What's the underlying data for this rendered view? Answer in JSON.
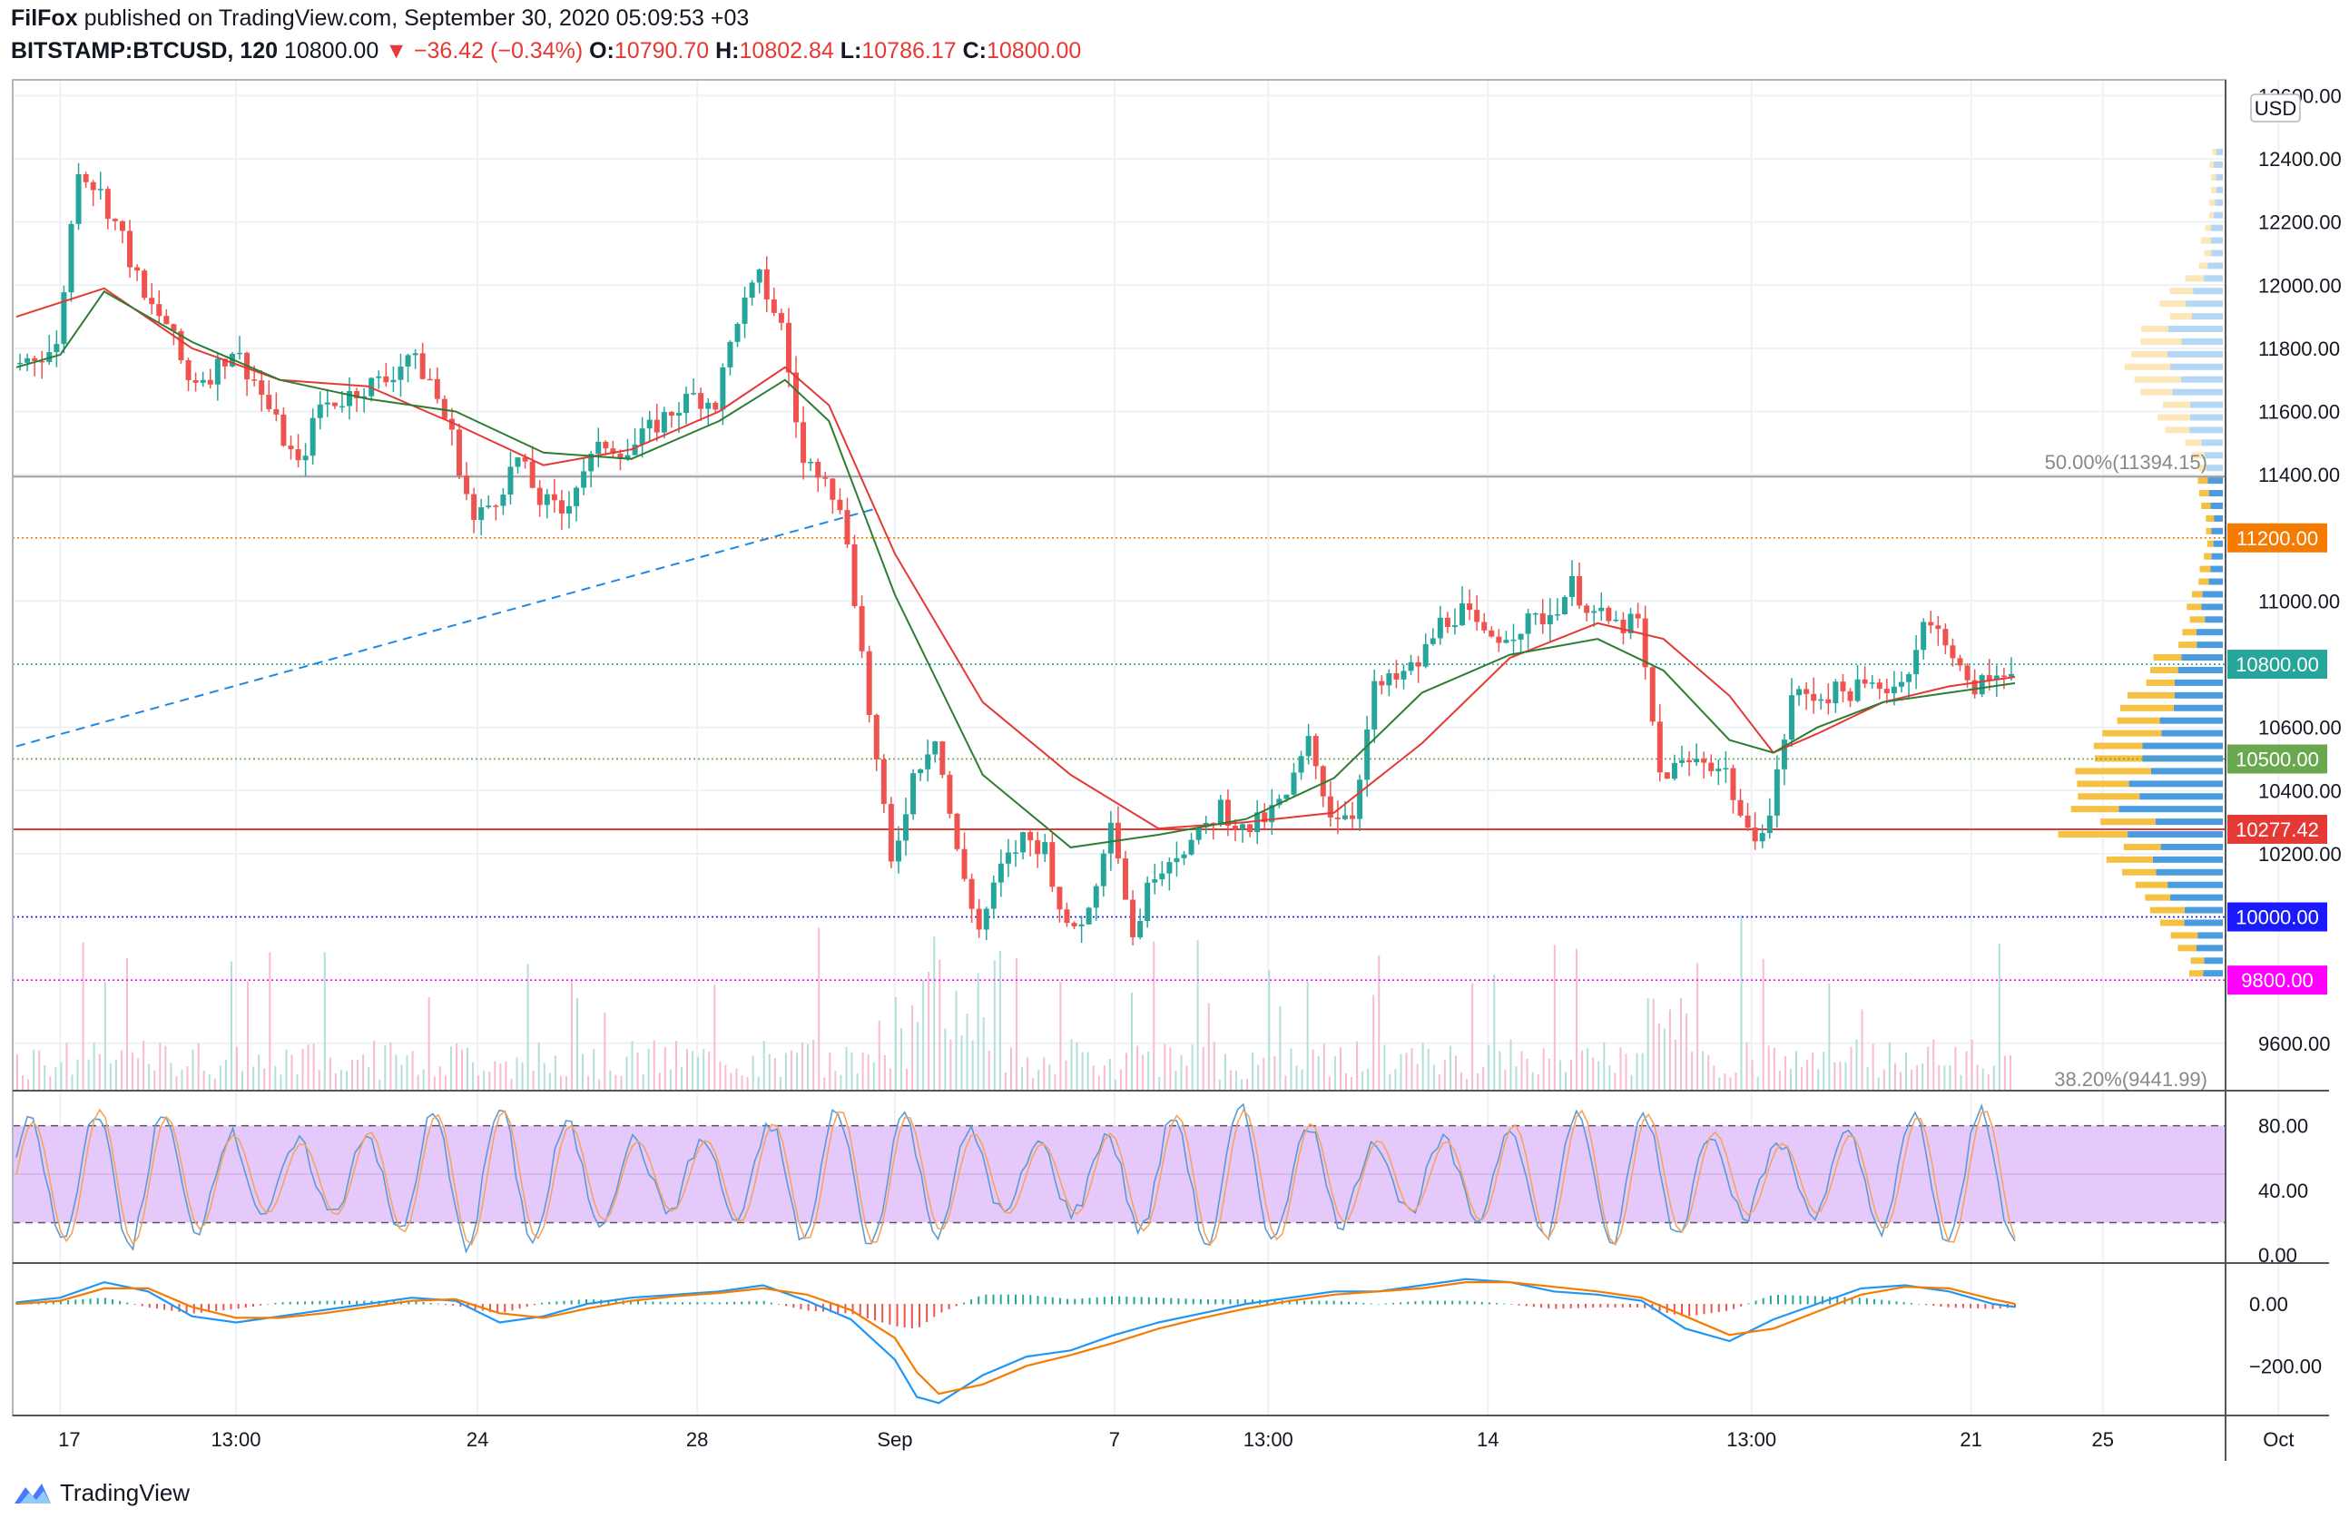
{
  "header": {
    "author": "FilFox",
    "published_text": "published on TradingView.com, September 30, 2020 05:09:53 +03",
    "symbol": "BITSTAMP:BTCUSD, 120",
    "last": "10800.00",
    "change": "−36.42 (−0.34%)",
    "o_label": "O:",
    "o_val": "10790.70",
    "h_label": "H:",
    "h_val": "10802.84",
    "l_label": "L:",
    "l_val": "10786.17",
    "c_label": "C:",
    "c_val": "10800.00"
  },
  "footer": {
    "brand": "TradingView"
  },
  "colors": {
    "up": "#26a69a",
    "down": "#ef5350",
    "ma_red": "#e53935",
    "ma_green": "#2e7d32",
    "orange": "#f57c00",
    "green_badge": "#6aa84f",
    "red_badge": "#e53935",
    "blue_badge": "#1a1aff",
    "magenta_badge": "#ff00ff",
    "stoch_band": "#e6c9fb",
    "macd_blue": "#2196f3",
    "macd_orange": "#f57c00"
  },
  "chart_data": [
    {
      "type": "candlestick",
      "title": "BITSTAMP:BTCUSD, 120",
      "unit": "USD",
      "ylim": [
        9450,
        12650
      ],
      "y_ticks": [
        "12600.00",
        "12400.00",
        "12200.00",
        "12000.00",
        "11800.00",
        "11600.00",
        "11400.00",
        "11000.00",
        "10600.00",
        "10400.00",
        "10200.00",
        "9600.00"
      ],
      "x_ticks": [
        "17",
        "13:00",
        "24",
        "28",
        "Sep",
        "7",
        "13:00",
        "14",
        "13:00",
        "21",
        "25",
        "Oct"
      ],
      "close_path": [
        [
          0,
          11750
        ],
        [
          2,
          11800
        ],
        [
          3,
          12380
        ],
        [
          4,
          12290
        ],
        [
          5,
          12150
        ],
        [
          6,
          11950
        ],
        [
          7,
          11880
        ],
        [
          8,
          11700
        ],
        [
          9,
          11720
        ],
        [
          10,
          11800
        ],
        [
          11,
          11700
        ],
        [
          12,
          11560
        ],
        [
          13,
          11420
        ],
        [
          14,
          11620
        ],
        [
          15,
          11640
        ],
        [
          16,
          11680
        ],
        [
          17,
          11700
        ],
        [
          18,
          11780
        ],
        [
          19,
          11700
        ],
        [
          20,
          11520
        ],
        [
          21,
          11250
        ],
        [
          22,
          11330
        ],
        [
          23,
          11450
        ],
        [
          24,
          11320
        ],
        [
          25,
          11280
        ],
        [
          26,
          11420
        ],
        [
          27,
          11500
        ],
        [
          28,
          11470
        ],
        [
          29,
          11540
        ],
        [
          30,
          11600
        ],
        [
          31,
          11650
        ],
        [
          32,
          11630
        ],
        [
          33,
          11900
        ],
        [
          34,
          12020
        ],
        [
          35,
          11870
        ],
        [
          36,
          11430
        ],
        [
          37,
          11420
        ],
        [
          38,
          11200
        ],
        [
          39,
          10650
        ],
        [
          40,
          10160
        ],
        [
          41,
          10450
        ],
        [
          42,
          10580
        ],
        [
          43,
          10200
        ],
        [
          44,
          9960
        ],
        [
          45,
          10150
        ],
        [
          46,
          10250
        ],
        [
          47,
          10220
        ],
        [
          48,
          9950
        ],
        [
          49,
          10020
        ],
        [
          50,
          10330
        ],
        [
          51,
          9940
        ],
        [
          52,
          10150
        ],
        [
          53,
          10210
        ],
        [
          54,
          10250
        ],
        [
          55,
          10350
        ],
        [
          56,
          10270
        ],
        [
          57,
          10310
        ],
        [
          58,
          10380
        ],
        [
          59,
          10550
        ],
        [
          60,
          10330
        ],
        [
          61,
          10330
        ],
        [
          62,
          10720
        ],
        [
          63,
          10750
        ],
        [
          64,
          10800
        ],
        [
          65,
          10930
        ],
        [
          66,
          10970
        ],
        [
          67,
          10880
        ],
        [
          68,
          10900
        ],
        [
          69,
          10930
        ],
        [
          70,
          10960
        ],
        [
          71,
          11050
        ],
        [
          72,
          10960
        ],
        [
          73,
          10920
        ],
        [
          74,
          10930
        ],
        [
          75,
          10450
        ],
        [
          76,
          10480
        ],
        [
          77,
          10500
        ],
        [
          78,
          10460
        ],
        [
          79,
          10250
        ],
        [
          80,
          10320
        ],
        [
          81,
          10700
        ],
        [
          82,
          10700
        ],
        [
          83,
          10710
        ],
        [
          84,
          10720
        ],
        [
          85,
          10730
        ],
        [
          86,
          10740
        ],
        [
          87,
          10920
        ],
        [
          88,
          10890
        ],
        [
          89,
          10720
        ],
        [
          90,
          10750
        ],
        [
          91,
          10800
        ]
      ],
      "ma_red": [
        [
          0,
          11900
        ],
        [
          4,
          11990
        ],
        [
          8,
          11800
        ],
        [
          12,
          11700
        ],
        [
          16,
          11680
        ],
        [
          20,
          11560
        ],
        [
          24,
          11430
        ],
        [
          28,
          11480
        ],
        [
          32,
          11600
        ],
        [
          35,
          11740
        ],
        [
          37,
          11620
        ],
        [
          40,
          11150
        ],
        [
          44,
          10680
        ],
        [
          48,
          10450
        ],
        [
          52,
          10280
        ],
        [
          56,
          10300
        ],
        [
          60,
          10330
        ],
        [
          64,
          10550
        ],
        [
          68,
          10820
        ],
        [
          72,
          10930
        ],
        [
          75,
          10880
        ],
        [
          78,
          10700
        ],
        [
          80,
          10520
        ],
        [
          82,
          10580
        ],
        [
          85,
          10680
        ],
        [
          88,
          10730
        ],
        [
          91,
          10760
        ]
      ],
      "ma_green": [
        [
          0,
          11740
        ],
        [
          2,
          11780
        ],
        [
          4,
          11980
        ],
        [
          8,
          11820
        ],
        [
          12,
          11700
        ],
        [
          16,
          11640
        ],
        [
          20,
          11600
        ],
        [
          24,
          11470
        ],
        [
          28,
          11450
        ],
        [
          32,
          11570
        ],
        [
          35,
          11700
        ],
        [
          37,
          11570
        ],
        [
          40,
          11020
        ],
        [
          44,
          10450
        ],
        [
          48,
          10220
        ],
        [
          52,
          10260
        ],
        [
          56,
          10310
        ],
        [
          60,
          10440
        ],
        [
          64,
          10710
        ],
        [
          68,
          10830
        ],
        [
          72,
          10880
        ],
        [
          75,
          10780
        ],
        [
          78,
          10560
        ],
        [
          80,
          10520
        ],
        [
          82,
          10600
        ],
        [
          85,
          10680
        ],
        [
          88,
          10710
        ],
        [
          91,
          10740
        ]
      ],
      "levels": [
        {
          "price": 11394.15,
          "label": "50.00%(11394.15)",
          "style": "solid",
          "color": "#9e9e9e"
        },
        {
          "price": 11200,
          "label": "11200.00",
          "style": "dotted",
          "color": "#f57c00"
        },
        {
          "price": 10800,
          "label": "10800.00",
          "style": "dotted",
          "color": "#26a69a"
        },
        {
          "price": 10500,
          "label": "10500.00",
          "style": "dotted",
          "color": "#6aa84f"
        },
        {
          "price": 10277.42,
          "label": "10277.42",
          "style": "solid",
          "color": "#e53935"
        },
        {
          "price": 10000,
          "label": "10000.00",
          "style": "dotted",
          "color": "#1a1aff"
        },
        {
          "price": 9800,
          "label": "9800.00",
          "style": "dotted",
          "color": "#ff00ff"
        },
        {
          "price": 9441.99,
          "label": "38.20%(9441.99)",
          "style": "none",
          "color": "#9e9e9e"
        }
      ],
      "trendline": {
        "from": [
          0,
          10540
        ],
        "to": [
          39,
          11290
        ],
        "style": "dashed",
        "color": "#1e88e5"
      }
    },
    {
      "type": "line",
      "title": "Stochastic RSI",
      "ylim": [
        -5,
        100
      ],
      "y_ticks": [
        "80.00",
        "40.00",
        "0.00"
      ],
      "band": [
        20,
        80
      ]
    },
    {
      "type": "line",
      "title": "MACD",
      "ylim": [
        -360,
        120
      ],
      "y_ticks": [
        "0.00",
        "−200.00"
      ],
      "macd": [
        [
          0,
          5
        ],
        [
          2,
          20
        ],
        [
          4,
          70
        ],
        [
          6,
          40
        ],
        [
          8,
          -40
        ],
        [
          10,
          -60
        ],
        [
          12,
          -40
        ],
        [
          14,
          -20
        ],
        [
          16,
          0
        ],
        [
          18,
          20
        ],
        [
          20,
          10
        ],
        [
          22,
          -60
        ],
        [
          24,
          -40
        ],
        [
          26,
          0
        ],
        [
          28,
          20
        ],
        [
          30,
          30
        ],
        [
          32,
          40
        ],
        [
          34,
          60
        ],
        [
          36,
          10
        ],
        [
          38,
          -50
        ],
        [
          40,
          -180
        ],
        [
          41,
          -300
        ],
        [
          42,
          -320
        ],
        [
          44,
          -230
        ],
        [
          46,
          -170
        ],
        [
          48,
          -150
        ],
        [
          50,
          -100
        ],
        [
          52,
          -60
        ],
        [
          54,
          -30
        ],
        [
          56,
          0
        ],
        [
          58,
          20
        ],
        [
          60,
          40
        ],
        [
          62,
          40
        ],
        [
          64,
          60
        ],
        [
          66,
          80
        ],
        [
          68,
          70
        ],
        [
          70,
          40
        ],
        [
          72,
          30
        ],
        [
          74,
          10
        ],
        [
          76,
          -80
        ],
        [
          78,
          -120
        ],
        [
          80,
          -50
        ],
        [
          82,
          0
        ],
        [
          84,
          50
        ],
        [
          86,
          60
        ],
        [
          88,
          40
        ],
        [
          90,
          0
        ],
        [
          91,
          -10
        ]
      ],
      "signal": [
        [
          0,
          0
        ],
        [
          2,
          10
        ],
        [
          4,
          50
        ],
        [
          6,
          50
        ],
        [
          8,
          -10
        ],
        [
          10,
          -45
        ],
        [
          12,
          -45
        ],
        [
          14,
          -30
        ],
        [
          16,
          -10
        ],
        [
          18,
          10
        ],
        [
          20,
          15
        ],
        [
          22,
          -30
        ],
        [
          24,
          -45
        ],
        [
          26,
          -15
        ],
        [
          28,
          10
        ],
        [
          30,
          25
        ],
        [
          32,
          35
        ],
        [
          34,
          50
        ],
        [
          36,
          30
        ],
        [
          38,
          -20
        ],
        [
          40,
          -110
        ],
        [
          41,
          -220
        ],
        [
          42,
          -290
        ],
        [
          44,
          -260
        ],
        [
          46,
          -200
        ],
        [
          48,
          -165
        ],
        [
          50,
          -125
        ],
        [
          52,
          -80
        ],
        [
          54,
          -45
        ],
        [
          56,
          -15
        ],
        [
          58,
          10
        ],
        [
          60,
          30
        ],
        [
          62,
          40
        ],
        [
          64,
          50
        ],
        [
          66,
          70
        ],
        [
          68,
          70
        ],
        [
          70,
          55
        ],
        [
          72,
          40
        ],
        [
          74,
          20
        ],
        [
          76,
          -40
        ],
        [
          78,
          -100
        ],
        [
          80,
          -80
        ],
        [
          82,
          -25
        ],
        [
          84,
          30
        ],
        [
          86,
          55
        ],
        [
          88,
          50
        ],
        [
          90,
          15
        ],
        [
          91,
          0
        ]
      ]
    }
  ]
}
